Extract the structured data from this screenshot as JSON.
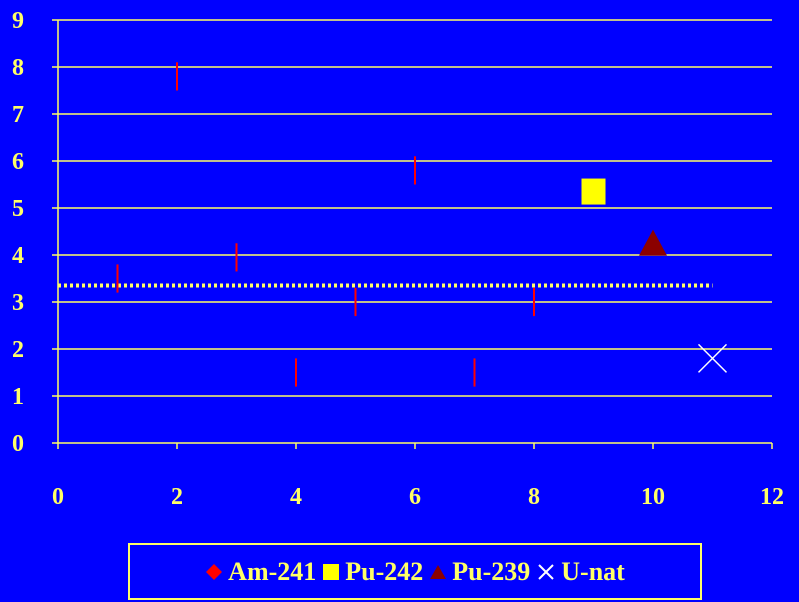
{
  "chart_data": {
    "type": "scatter",
    "title": "",
    "xlabel": "",
    "ylabel": "",
    "xlim": [
      0,
      12
    ],
    "ylim": [
      0,
      9
    ],
    "x_ticks": [
      "0",
      "2",
      "4",
      "6",
      "8",
      "10",
      "12"
    ],
    "y_ticks": [
      "0",
      "1",
      "2",
      "3",
      "4",
      "5",
      "6",
      "7",
      "8",
      "9"
    ],
    "grid": "horizontal",
    "legend_position": "bottom",
    "reference_line": {
      "y": 3.35,
      "x_range": [
        0,
        11
      ],
      "style": "dotted",
      "color": "#FFFF66"
    },
    "series": [
      {
        "name": "Am-241",
        "marker": "diamond",
        "color": "#FF0000",
        "points": [
          {
            "x": 1,
            "y": 3.5,
            "err": 0.3
          },
          {
            "x": 2,
            "y": 7.8,
            "err": 0.3
          },
          {
            "x": 3,
            "y": 3.95,
            "err": 0.3
          },
          {
            "x": 4,
            "y": 1.5,
            "err": 0.3
          },
          {
            "x": 5,
            "y": 3.0,
            "err": 0.3
          },
          {
            "x": 6,
            "y": 5.8,
            "err": 0.3
          },
          {
            "x": 7,
            "y": 1.5,
            "err": 0.3
          },
          {
            "x": 8,
            "y": 3.0,
            "err": 0.3
          }
        ]
      },
      {
        "name": "Pu-242",
        "marker": "square",
        "color": "#FFFF00",
        "points": [
          {
            "x": 9,
            "y": 5.35
          }
        ]
      },
      {
        "name": "Pu-239",
        "marker": "triangle",
        "color": "#8B0000",
        "points": [
          {
            "x": 10,
            "y": 4.2
          }
        ]
      },
      {
        "name": "U-nat",
        "marker": "x",
        "color": "#FFFFFF",
        "points": [
          {
            "x": 11,
            "y": 1.8
          }
        ]
      }
    ]
  }
}
